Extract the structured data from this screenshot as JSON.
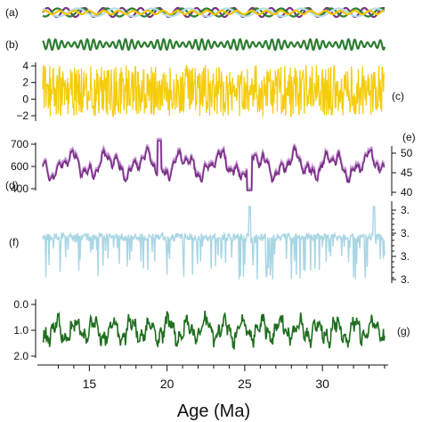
{
  "chart_data": [
    {
      "panel": "(a)",
      "type": "line",
      "series": [
        {
          "color": "#7b2f87",
          "period": 1.2,
          "amplitude": 1.0
        },
        {
          "color": "#2e7d32",
          "period": 1.6,
          "amplitude": 0.9
        },
        {
          "color": "#b8dde8",
          "period": 2.4,
          "amplitude": 0.9
        },
        {
          "color": "#f2c500",
          "period": 0.95,
          "amplitude": 0.4
        }
      ]
    },
    {
      "panel": "(b)",
      "type": "line",
      "series": [
        {
          "color": "#2e7d32",
          "period": 0.41,
          "amplitude": 1.0
        }
      ]
    },
    {
      "panel": "(c)",
      "type": "line",
      "yticks": [
        "4",
        "2",
        "0",
        "−2"
      ],
      "ylim": [
        -2.6,
        4.6
      ],
      "series": [
        {
          "color": "#f5cc0a"
        }
      ]
    },
    {
      "panel": "(e)",
      "type": "line",
      "yticks_left": [
        "700",
        "600",
        "400"
      ],
      "yticks_right": [
        "50",
        "45",
        "40"
      ],
      "series": [
        {
          "color": "#7b2f87"
        },
        {
          "color": "#c9a0d6"
        }
      ]
    },
    {
      "panel": "(f)",
      "type": "line",
      "yticks_right": [
        "3.",
        "3.",
        "3.",
        "3."
      ],
      "series": [
        {
          "color": "#a9d6e5"
        }
      ]
    },
    {
      "panel": "(g)",
      "type": "line",
      "yticks": [
        "0.0",
        "1.0",
        "2.0"
      ],
      "ylim": [
        0,
        2
      ],
      "y_reversed": true,
      "series": [
        {
          "color": "#1f6e1f"
        }
      ]
    }
  ],
  "labels": {
    "a": "(a)",
    "b": "(b)",
    "c": "(c)",
    "d": "(d)",
    "e": "(e)",
    "f": "(f)",
    "g": "(g)"
  },
  "xaxis": {
    "label": "Age (Ma)",
    "range": [
      12,
      34
    ],
    "ticks": [
      "15",
      "20",
      "25",
      "30"
    ],
    "tick_values": [
      15,
      20,
      25,
      30
    ]
  }
}
